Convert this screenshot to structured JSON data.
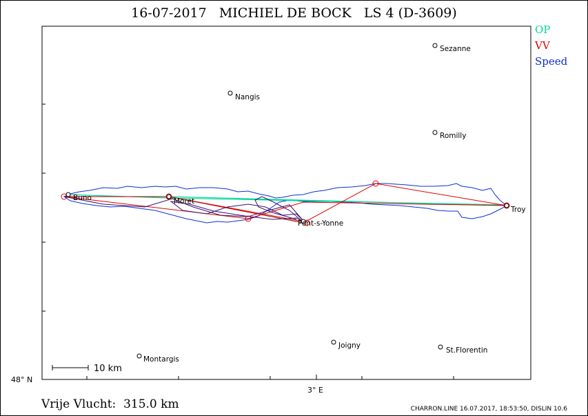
{
  "title": "16-07-2017   MICHIEL DE BOCK   LS 4 (D-3609)",
  "legend": [
    {
      "label": "OP",
      "color": "#00d79a"
    },
    {
      "label": "VV",
      "color": "#e00000"
    },
    {
      "label": "Speed",
      "color": "#0a2fd6"
    }
  ],
  "axes": {
    "lat_label": "48° N",
    "lon_label": "3° E"
  },
  "scale_bar": {
    "label": "10 km"
  },
  "towns": [
    {
      "name": "Sezanne"
    },
    {
      "name": "Nangis"
    },
    {
      "name": "Romilly"
    },
    {
      "name": "Buno"
    },
    {
      "name": "Moret"
    },
    {
      "name": "Pont-s-Yonne"
    },
    {
      "name": "Troy"
    },
    {
      "name": "Joigny"
    },
    {
      "name": "St.Florentin"
    },
    {
      "name": "Montargis"
    }
  ],
  "footer": {
    "distance": "Vrije Vlucht:  315.0 km",
    "info": "CHARRON.LINE 16.07.2017, 18:53:50, DISLIN 10.6"
  }
}
